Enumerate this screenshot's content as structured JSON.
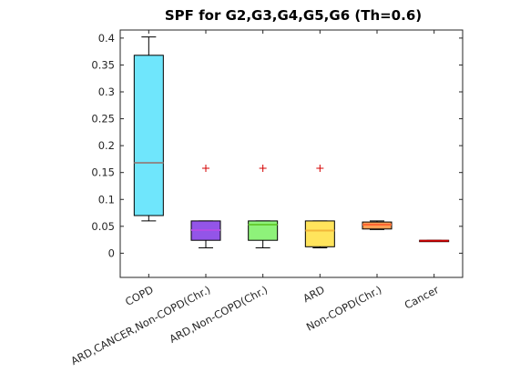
{
  "chart_data": {
    "type": "box",
    "title": "SPF for G2,G3,G4,G5,G6 (Th=0.6)",
    "xlabel": "",
    "ylabel": "",
    "ylim": [
      -0.045,
      0.415
    ],
    "yticks": [
      0,
      0.05,
      0.1,
      0.15,
      0.2,
      0.25,
      0.3,
      0.35,
      0.4
    ],
    "ytick_labels": [
      "0",
      "0.05",
      "0.1",
      "0.15",
      "0.2",
      "0.25",
      "0.3",
      "0.35",
      "0.4"
    ],
    "grid": false,
    "categories": [
      "COPD",
      "ARD,CANCER,Non-COPD(Chr.)",
      "ARD,Non-COPD(Chr.)",
      "ARD",
      "Non-COPD(Chr.)",
      "Cancer"
    ],
    "boxes": [
      {
        "whisker_low": 0.06,
        "q1": 0.07,
        "median": 0.168,
        "q3": 0.368,
        "whisker_high": 0.402,
        "outliers": [],
        "fill": "#6fe6fc",
        "median_color": "#8c8c8c"
      },
      {
        "whisker_low": 0.01,
        "q1": 0.024,
        "median": 0.043,
        "q3": 0.06,
        "whisker_high": 0.06,
        "outliers": [
          0.158
        ],
        "fill": "#9355e8",
        "median_color": "#b34de6"
      },
      {
        "whisker_low": 0.01,
        "q1": 0.024,
        "median": 0.053,
        "q3": 0.06,
        "whisker_high": 0.06,
        "outliers": [
          0.158
        ],
        "fill": "#8ef27a",
        "median_color": "#66cc33"
      },
      {
        "whisker_low": 0.01,
        "q1": 0.012,
        "median": 0.042,
        "q3": 0.06,
        "whisker_high": 0.06,
        "outliers": [
          0.158
        ],
        "fill": "#ffe45c",
        "median_color": "#f2b63a"
      },
      {
        "whisker_low": 0.044,
        "q1": 0.045,
        "median": 0.053,
        "q3": 0.058,
        "whisker_high": 0.06,
        "outliers": [],
        "fill": "#ffa055",
        "median_color": "#ff6633"
      },
      {
        "whisker_low": 0.023,
        "q1": 0.023,
        "median": 0.023,
        "q3": 0.024,
        "whisker_high": 0.024,
        "outliers": [],
        "fill": "#d22a2a",
        "median_color": "#cc0000"
      }
    ],
    "outlier_color": "#d40000",
    "outlier_marker": "+"
  }
}
